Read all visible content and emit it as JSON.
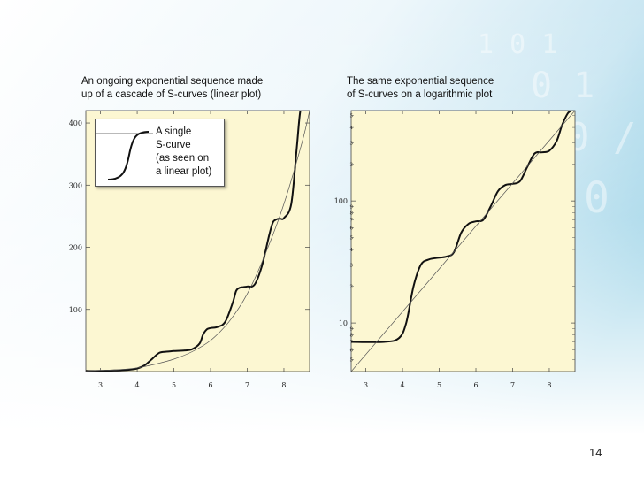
{
  "slide": {
    "number": "14"
  },
  "captions": {
    "left": [
      "An ongoing exponential sequence made",
      "up of a cascade of S-curves (linear plot)"
    ],
    "right": [
      "The same exponential sequence",
      "of S-curves on a logarithmic plot"
    ]
  },
  "inset": {
    "lines": [
      "A single",
      "S-curve",
      "(as seen on",
      "a linear plot)"
    ]
  },
  "chart_data": [
    {
      "type": "line",
      "title": "An ongoing exponential sequence made up of a cascade of S-curves (linear plot)",
      "xlim": [
        2.6,
        8.7
      ],
      "ylim": [
        0,
        420
      ],
      "x_ticks": [
        "3",
        "4",
        "5",
        "6",
        "7",
        "8"
      ],
      "y_ticks": [
        "100",
        "200",
        "300",
        "400"
      ],
      "y_scale": "linear",
      "series": [
        {
          "style": "thick",
          "x": [
            2.6,
            3.0,
            3.5,
            3.8,
            4.0,
            4.2,
            4.4,
            4.6,
            4.8,
            5.0,
            5.3,
            5.5,
            5.7,
            5.8,
            5.9,
            6.0,
            6.2,
            6.4,
            6.6,
            6.7,
            6.8,
            6.9,
            7.0,
            7.2,
            7.4,
            7.6,
            7.7,
            7.8,
            7.9,
            8.0,
            8.2,
            8.35,
            8.45,
            8.55,
            8.65
          ],
          "y": [
            1,
            1,
            2,
            3,
            5,
            10,
            20,
            30,
            32,
            33,
            34,
            36,
            45,
            60,
            68,
            70,
            72,
            80,
            110,
            130,
            135,
            136,
            137,
            140,
            170,
            220,
            240,
            245,
            246,
            247,
            270,
            360,
            420,
            420,
            420
          ]
        },
        {
          "style": "thin",
          "x": [
            2.6,
            3.0,
            3.5,
            4.0,
            4.5,
            5.0,
            5.5,
            6.0,
            6.5,
            7.0,
            7.5,
            8.0,
            8.5,
            8.7
          ],
          "y": [
            1,
            2,
            3,
            6,
            12,
            20,
            32,
            50,
            80,
            125,
            190,
            270,
            370,
            420
          ]
        }
      ]
    },
    {
      "type": "line",
      "title": "The same exponential sequence of S-curves on a logarithmic plot",
      "xlim": [
        2.6,
        8.7
      ],
      "ylim": [
        4,
        550
      ],
      "x_ticks": [
        "3",
        "4",
        "5",
        "6",
        "7",
        "8"
      ],
      "y_ticks": [
        "10",
        "100"
      ],
      "y_minor_ticks": [
        "2",
        "3",
        "4",
        "5",
        "6",
        "7",
        "8",
        "9"
      ],
      "y_scale": "log",
      "series": [
        {
          "style": "thick",
          "x": [
            2.6,
            3.5,
            3.9,
            4.1,
            4.3,
            4.5,
            4.7,
            4.9,
            5.2,
            5.4,
            5.6,
            5.8,
            6.0,
            6.2,
            6.4,
            6.6,
            6.8,
            7.0,
            7.2,
            7.4,
            7.6,
            7.8,
            8.0,
            8.2,
            8.35,
            8.5,
            8.6
          ],
          "y": [
            7,
            7,
            7.5,
            10,
            20,
            30,
            33,
            34,
            35,
            38,
            55,
            65,
            68,
            70,
            90,
            120,
            135,
            138,
            145,
            190,
            245,
            250,
            258,
            310,
            420,
            520,
            550
          ]
        },
        {
          "style": "thin",
          "x": [
            2.6,
            8.7
          ],
          "y": [
            4,
            550
          ]
        }
      ]
    }
  ]
}
